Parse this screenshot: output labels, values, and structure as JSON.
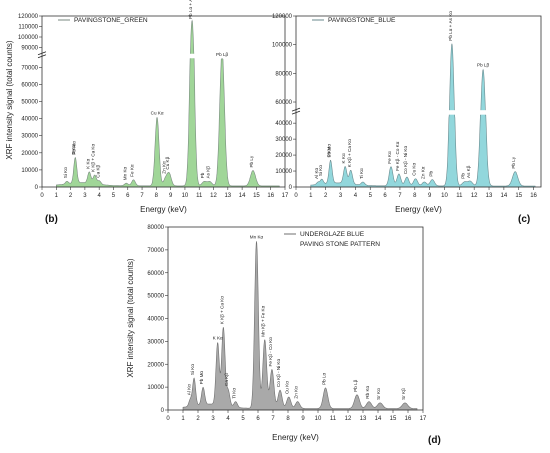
{
  "y_axis_label": "XRF intensity signal (total counts)",
  "x_axis_label": "Energy (keV)",
  "chart_data": [
    {
      "id": "b",
      "type": "line",
      "panel_label": "(b)",
      "legend": "PAVINGSTONE_GREEN",
      "line_color": "#7a8a80",
      "fill_color": "#8fcf86",
      "xlabel": "Energy (keV)",
      "ylabel": "XRF intensity signal (total counts)",
      "xlim": [
        0,
        17
      ],
      "x_ticks": [
        0,
        1,
        2,
        3,
        4,
        5,
        6,
        7,
        8,
        9,
        10,
        11,
        12,
        13,
        14,
        15,
        16,
        17
      ],
      "y_axis_break": true,
      "y_ticks": [
        0,
        10000,
        20000,
        30000,
        40000,
        50000,
        60000,
        70000,
        90000,
        100000,
        110000,
        120000
      ],
      "y_lower_range": [
        0,
        75000
      ],
      "y_upper_range": [
        85000,
        120000
      ],
      "peaks": [
        {
          "label": "Si Kα",
          "x": 1.74,
          "y": 1500
        },
        {
          "label": "Pb Mα",
          "x": 2.34,
          "y": 9000
        },
        {
          "label": "S Kα",
          "x": 2.31,
          "y": 6000
        },
        {
          "label": "K Kα",
          "x": 3.31,
          "y": 6500
        },
        {
          "label": "K Kβ + Ca Kα",
          "x": 3.69,
          "y": 5000
        },
        {
          "label": "Ca Kβ",
          "x": 4.01,
          "y": 2000
        },
        {
          "label": "Mn Kα",
          "x": 5.9,
          "y": 1500
        },
        {
          "label": "Fe Kα",
          "x": 6.4,
          "y": 3500
        },
        {
          "label": "Cu Kα",
          "x": 8.05,
          "y": 40000
        },
        {
          "label": "Cu Kβ",
          "x": 8.9,
          "y": 7000
        },
        {
          "label": "Zn Kα",
          "x": 8.64,
          "y": 4000
        },
        {
          "label": "Pb Lα + As Kα",
          "x": 10.5,
          "y": 115000
        },
        {
          "label": "Pb Lβ",
          "x": 12.6,
          "y": 79000
        },
        {
          "label": "Pb",
          "x": 11.35,
          "y": 2500
        },
        {
          "label": "As Kβ",
          "x": 11.73,
          "y": 2500
        },
        {
          "label": "Pb Lγ",
          "x": 14.76,
          "y": 9000
        }
      ]
    },
    {
      "id": "c",
      "type": "line",
      "panel_label": "(c)",
      "legend": "PAVINGSTONE_BLUE",
      "line_color": "#6a8a8e",
      "fill_color": "#7fd0d6",
      "xlabel": "Energy (keV)",
      "ylabel": "",
      "xlim": [
        0,
        16.5
      ],
      "x_ticks": [
        0,
        1,
        2,
        3,
        4,
        5,
        6,
        7,
        8,
        9,
        10,
        11,
        12,
        13,
        14,
        15,
        16
      ],
      "y_axis_break": true,
      "y_ticks": [
        0,
        10000,
        20000,
        30000,
        40000,
        60000,
        80000,
        100000,
        120000
      ],
      "y_lower_range": [
        0,
        45000
      ],
      "y_upper_range": [
        55000,
        120000
      ],
      "peaks": [
        {
          "label": "Al Kα",
          "x": 1.49,
          "y": 1500
        },
        {
          "label": "Si Kα",
          "x": 1.74,
          "y": 3000
        },
        {
          "label": "Pb Mα",
          "x": 2.34,
          "y": 8500
        },
        {
          "label": "S Kα",
          "x": 2.31,
          "y": 6000
        },
        {
          "label": "K Kα",
          "x": 3.31,
          "y": 10500
        },
        {
          "label": "K Kβ + Ca Kα",
          "x": 3.69,
          "y": 8500
        },
        {
          "label": "Ti Kα",
          "x": 4.51,
          "y": 2000
        },
        {
          "label": "Fe Kα",
          "x": 6.4,
          "y": 12000
        },
        {
          "label": "Fe Kβ - Co Kα",
          "x": 6.93,
          "y": 7500
        },
        {
          "label": "Co Kβ - Ni Kα",
          "x": 7.47,
          "y": 5500
        },
        {
          "label": "Cu Kα",
          "x": 8.05,
          "y": 4500
        },
        {
          "label": "Zn Kα",
          "x": 8.64,
          "y": 2500
        },
        {
          "label": "Pb",
          "x": 9.18,
          "y": 4000
        },
        {
          "label": "Pb Lα + As Kα",
          "x": 10.5,
          "y": 100000
        },
        {
          "label": "Pb Lβ",
          "x": 12.6,
          "y": 82000
        },
        {
          "label": "Pb",
          "x": 11.35,
          "y": 2500
        },
        {
          "label": "As Kβ",
          "x": 11.73,
          "y": 3000
        },
        {
          "label": "Pb Lγ",
          "x": 14.76,
          "y": 9000
        }
      ]
    },
    {
      "id": "d",
      "type": "line",
      "panel_label": "(d)",
      "legend_lines": [
        "UNDERGLAZE BLUE",
        "PAVING STONE PATTERN"
      ],
      "line_color": "#6f6f6f",
      "fill_color": "#9a9a9a",
      "xlabel": "Energy (keV)",
      "ylabel": "XRF intensity signal (total counts)",
      "xlim": [
        0,
        17
      ],
      "x_ticks": [
        0,
        1,
        2,
        3,
        4,
        5,
        6,
        7,
        8,
        9,
        10,
        11,
        12,
        13,
        14,
        15,
        16,
        17
      ],
      "ylim": [
        0,
        80000
      ],
      "y_ticks": [
        0,
        10000,
        20000,
        30000,
        40000,
        50000,
        60000,
        70000,
        80000
      ],
      "peaks": [
        {
          "label": "Al Kα",
          "x": 1.49,
          "y": 3000
        },
        {
          "label": "Si Kα",
          "x": 1.74,
          "y": 12000
        },
        {
          "label": "Pb Mα",
          "x": 2.34,
          "y": 7500
        },
        {
          "label": "K Kα",
          "x": 3.31,
          "y": 27000
        },
        {
          "label": "K Kβ + Ca Kα",
          "x": 3.69,
          "y": 34000
        },
        {
          "label": "Ca Kβ",
          "x": 4.01,
          "y": 7000
        },
        {
          "label": "Ti Kα",
          "x": 4.51,
          "y": 2500
        },
        {
          "label": "Mn Kα",
          "x": 5.9,
          "y": 73000
        },
        {
          "label": "Mn Kβ + Fe Kα",
          "x": 6.45,
          "y": 30000
        },
        {
          "label": "Fe Kβ - Co Kα",
          "x": 6.93,
          "y": 17000
        },
        {
          "label": "Co Kβ - Ni Kα",
          "x": 7.47,
          "y": 8000
        },
        {
          "label": "Cu Kα",
          "x": 8.05,
          "y": 5000
        },
        {
          "label": "Zn Kα",
          "x": 8.64,
          "y": 3000
        },
        {
          "label": "Pb Lα",
          "x": 10.5,
          "y": 9000
        },
        {
          "label": "Pb Lβ",
          "x": 12.6,
          "y": 6000
        },
        {
          "label": "Rb Kα",
          "x": 13.4,
          "y": 3000
        },
        {
          "label": "Sr Kα",
          "x": 14.14,
          "y": 2500
        },
        {
          "label": "Sr Kβ",
          "x": 15.8,
          "y": 2500
        }
      ]
    }
  ]
}
